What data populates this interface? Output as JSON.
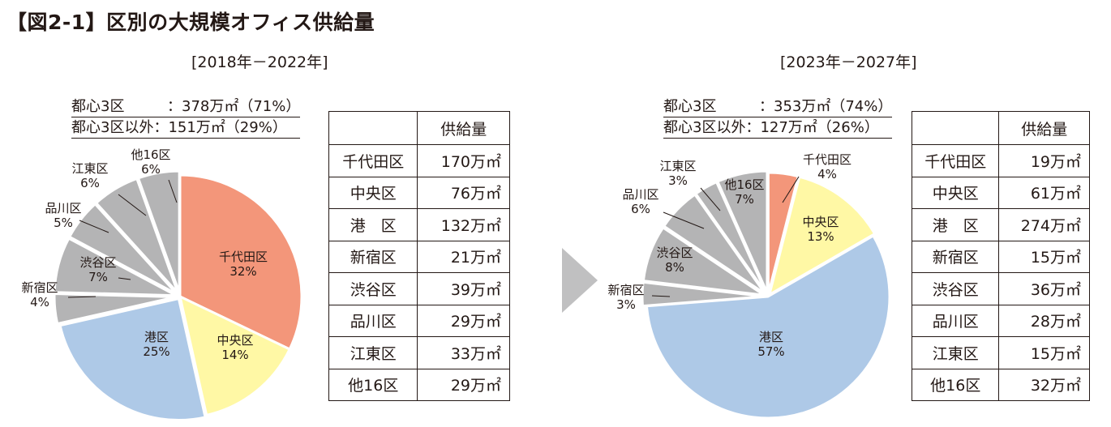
{
  "title": "【図2-1】区別の大規模オフィス供給量",
  "colors": {
    "chiyoda": "#f3967a",
    "chuo": "#fff8a5",
    "minato": "#aec9e7",
    "others": "#b4b4b5",
    "text": "#231815",
    "arrow": "#c0c0c1"
  },
  "charts": [
    {
      "period": "[2018年－2022年]",
      "summary": [
        {
          "label": "都心3区",
          "value": "：378万㎡（71%）"
        },
        {
          "label": "都心3区以外",
          "value": "：151万㎡（29%）"
        }
      ],
      "table": {
        "header": "供給量",
        "rows": [
          {
            "ward": "千代田区",
            "amount": "170万㎡"
          },
          {
            "ward": "中央区",
            "amount": "76万㎡"
          },
          {
            "ward": "港　区",
            "amount": "132万㎡"
          },
          {
            "ward": "新宿区",
            "amount": "21万㎡"
          },
          {
            "ward": "渋谷区",
            "amount": "39万㎡"
          },
          {
            "ward": "品川区",
            "amount": "29万㎡"
          },
          {
            "ward": "江東区",
            "amount": "33万㎡"
          },
          {
            "ward": "他16区",
            "amount": "29万㎡"
          }
        ]
      },
      "slice_labels": [
        {
          "name": "千代田区",
          "pct": "32%"
        },
        {
          "name": "中央区",
          "pct": "14%"
        },
        {
          "name": "港区",
          "pct": "25%"
        },
        {
          "name": "新宿区",
          "pct": "4%"
        },
        {
          "name": "渋谷区",
          "pct": "7%"
        },
        {
          "name": "品川区",
          "pct": "5%"
        },
        {
          "name": "江東区",
          "pct": "6%"
        },
        {
          "name": "他16区",
          "pct": "6%"
        }
      ]
    },
    {
      "period": "[2023年－2027年]",
      "summary": [
        {
          "label": "都心3区",
          "value": "：353万㎡（74%）"
        },
        {
          "label": "都心3区以外",
          "value": "：127万㎡（26%）"
        }
      ],
      "table": {
        "header": "供給量",
        "rows": [
          {
            "ward": "千代田区",
            "amount": "19万㎡"
          },
          {
            "ward": "中央区",
            "amount": "61万㎡"
          },
          {
            "ward": "港　区",
            "amount": "274万㎡"
          },
          {
            "ward": "新宿区",
            "amount": "15万㎡"
          },
          {
            "ward": "渋谷区",
            "amount": "36万㎡"
          },
          {
            "ward": "品川区",
            "amount": "28万㎡"
          },
          {
            "ward": "江東区",
            "amount": "15万㎡"
          },
          {
            "ward": "他16区",
            "amount": "32万㎡"
          }
        ]
      },
      "slice_labels": [
        {
          "name": "千代田区",
          "pct": "4%"
        },
        {
          "name": "中央区",
          "pct": "13%"
        },
        {
          "name": "港区",
          "pct": "57%"
        },
        {
          "name": "新宿区",
          "pct": "3%"
        },
        {
          "name": "渋谷区",
          "pct": "8%"
        },
        {
          "name": "品川区",
          "pct": "6%"
        },
        {
          "name": "江東区",
          "pct": "3%"
        },
        {
          "name": "他16区",
          "pct": "7%"
        }
      ]
    }
  ],
  "chart_data": [
    {
      "type": "pie",
      "title": "[2018年－2022年]",
      "unit": "万㎡",
      "categories": [
        "千代田区",
        "中央区",
        "港区",
        "新宿区",
        "渋谷区",
        "品川区",
        "江東区",
        "他16区"
      ],
      "values": [
        170,
        76,
        132,
        21,
        39,
        29,
        33,
        29
      ],
      "percentages": [
        32,
        14,
        25,
        4,
        7,
        5,
        6,
        6
      ],
      "annotations": [
        "都心3区：378万㎡（71%）",
        "都心3区以外：151万㎡（29%）"
      ]
    },
    {
      "type": "pie",
      "title": "[2023年－2027年]",
      "unit": "万㎡",
      "categories": [
        "千代田区",
        "中央区",
        "港区",
        "新宿区",
        "渋谷区",
        "品川区",
        "江東区",
        "他16区"
      ],
      "values": [
        19,
        61,
        274,
        15,
        36,
        28,
        15,
        32
      ],
      "percentages": [
        4,
        13,
        57,
        3,
        8,
        6,
        3,
        7
      ],
      "annotations": [
        "都心3区：353万㎡（74%）",
        "都心3区以外：127万㎡（26%）"
      ]
    }
  ]
}
